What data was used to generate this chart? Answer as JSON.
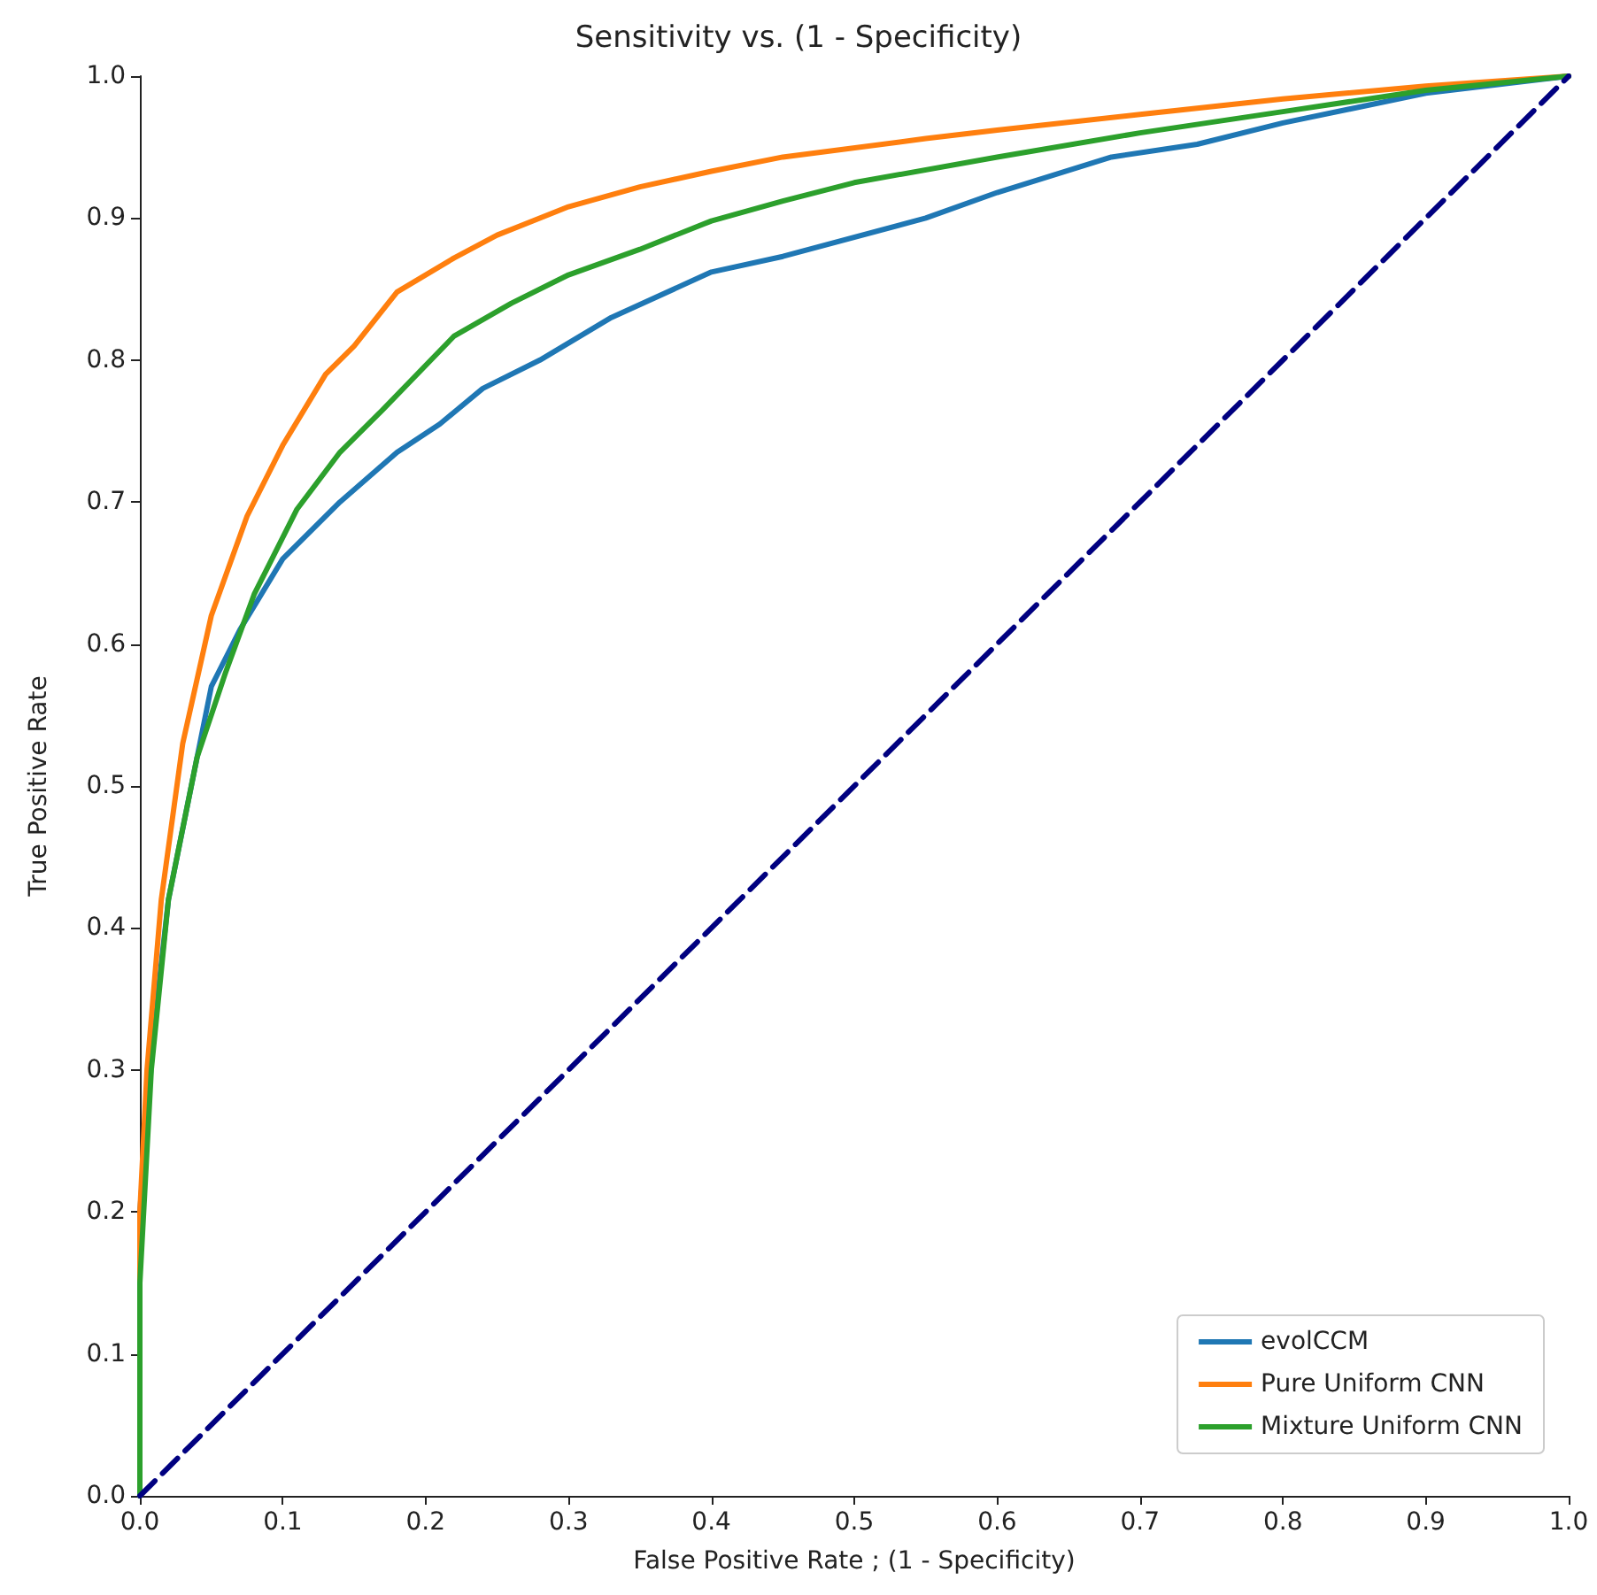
{
  "chart_data": {
    "type": "line",
    "title": "Sensitivity vs. (1 - Specificity)",
    "xlabel": "False Positive Rate ; (1 - Specificity)",
    "ylabel": "True Positive Rate",
    "series": [
      {
        "name": "evolCCM",
        "color": "#1f77b4",
        "x": [
          0,
          0,
          0.01,
          0.02,
          0.03,
          0.05,
          0.07,
          0.1,
          0.14,
          0.18,
          0.21,
          0.24,
          0.28,
          0.33,
          0.4,
          0.45,
          0.55,
          0.6,
          0.68,
          0.74,
          0.8,
          0.9,
          1
        ],
        "values": [
          0,
          0.2,
          0.33,
          0.42,
          0.47,
          0.57,
          0.61,
          0.66,
          0.7,
          0.735,
          0.755,
          0.78,
          0.8,
          0.83,
          0.862,
          0.873,
          0.9,
          0.918,
          0.943,
          0.952,
          0.967,
          0.988,
          1
        ]
      },
      {
        "name": "Pure Uniform CNN",
        "color": "#ff7f0e",
        "x": [
          0,
          0,
          0.005,
          0.015,
          0.03,
          0.05,
          0.075,
          0.1,
          0.13,
          0.15,
          0.18,
          0.22,
          0.25,
          0.3,
          0.35,
          0.4,
          0.45,
          0.55,
          0.6,
          0.7,
          0.8,
          0.9,
          1
        ],
        "values": [
          0,
          0.2,
          0.3,
          0.42,
          0.53,
          0.62,
          0.69,
          0.74,
          0.79,
          0.81,
          0.848,
          0.872,
          0.888,
          0.908,
          0.922,
          0.933,
          0.943,
          0.956,
          0.962,
          0.973,
          0.984,
          0.993,
          1
        ]
      },
      {
        "name": "Mixture Uniform CNN",
        "color": "#2ca02c",
        "x": [
          0,
          0,
          0.008,
          0.02,
          0.04,
          0.06,
          0.08,
          0.11,
          0.14,
          0.17,
          0.22,
          0.26,
          0.3,
          0.35,
          0.4,
          0.45,
          0.5,
          0.6,
          0.7,
          0.8,
          0.9,
          1
        ],
        "values": [
          0,
          0.15,
          0.3,
          0.42,
          0.52,
          0.58,
          0.635,
          0.695,
          0.735,
          0.765,
          0.817,
          0.84,
          0.86,
          0.878,
          0.898,
          0.912,
          0.925,
          0.943,
          0.96,
          0.975,
          0.99,
          1
        ]
      },
      {
        "color": "#000080",
        "line_style": "dashed",
        "x": [
          0,
          1
        ],
        "values": [
          0,
          1
        ]
      }
    ],
    "xlim": [
      0,
      1
    ],
    "ylim": [
      0,
      1
    ],
    "xticks": [
      {
        "value": 0,
        "label": "0.0"
      },
      0.1,
      0.2,
      0.3,
      0.4,
      0.5,
      0.6,
      0.7,
      0.8,
      0.9,
      {
        "value": 1,
        "label": "1.0"
      }
    ],
    "yticks": [
      {
        "value": 0,
        "label": "0.0"
      },
      0.1,
      0.2,
      0.3,
      0.4,
      0.5,
      0.6,
      0.7,
      0.8,
      0.9,
      {
        "value": 1,
        "label": "1.0"
      }
    ],
    "legend": "bottom right",
    "grid": false,
    "marker": "none",
    "line_style": "solid"
  }
}
